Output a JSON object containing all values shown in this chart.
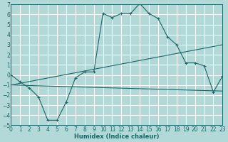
{
  "xlabel": "Humidex (Indice chaleur)",
  "bg_color": "#b2d8d8",
  "grid_color": "#ffffff",
  "line_color": "#1a6666",
  "xlim": [
    0,
    23
  ],
  "ylim": [
    -5,
    7
  ],
  "xticks": [
    0,
    1,
    2,
    3,
    4,
    5,
    6,
    7,
    8,
    9,
    10,
    11,
    12,
    13,
    14,
    15,
    16,
    17,
    18,
    19,
    20,
    21,
    22,
    23
  ],
  "yticks": [
    -5,
    -4,
    -3,
    -2,
    -1,
    0,
    1,
    2,
    3,
    4,
    5,
    6,
    7
  ],
  "main_x": [
    0,
    1,
    2,
    3,
    4,
    5,
    6,
    7,
    8,
    9,
    10,
    11,
    12,
    13,
    14,
    15,
    16,
    17,
    18,
    19,
    20,
    21,
    22,
    23
  ],
  "main_y": [
    0.0,
    -0.7,
    -1.3,
    -2.2,
    -4.5,
    -4.5,
    -2.7,
    -0.3,
    0.3,
    0.3,
    6.1,
    5.7,
    6.1,
    6.1,
    7.1,
    6.1,
    5.6,
    3.8,
    3.0,
    1.2,
    1.2,
    0.9,
    -1.7,
    -0.1
  ],
  "line2_x": [
    0,
    23
  ],
  "line2_y": [
    -1.0,
    -1.6
  ],
  "line3_x": [
    0,
    23
  ],
  "line3_y": [
    -1.0,
    3.0
  ]
}
